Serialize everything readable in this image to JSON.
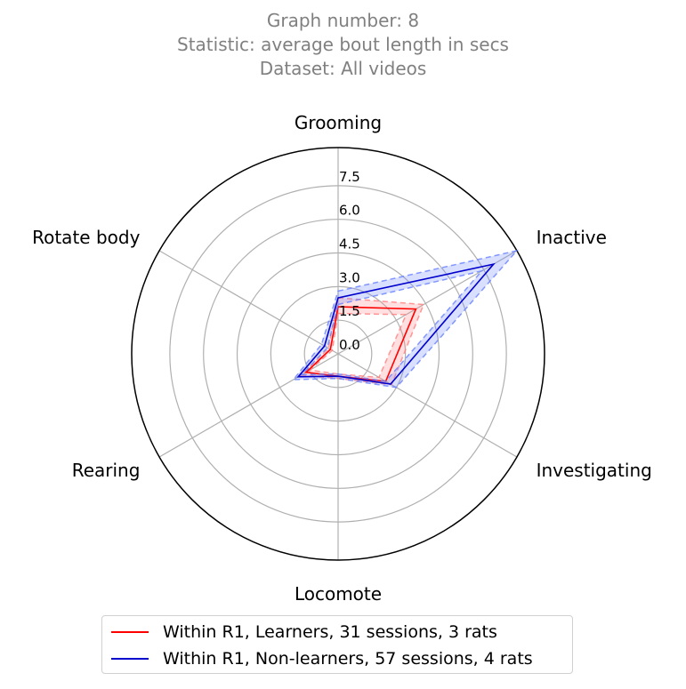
{
  "title": {
    "line1": "Graph number: 8",
    "line2": "Statistic: average bout length in secs",
    "line3": "Dataset: All videos"
  },
  "chart_data": {
    "type": "radar",
    "categories": [
      "Grooming",
      "Inactive",
      "Investigating",
      "Locomote",
      "Rearing",
      "Rotate body"
    ],
    "rlim": [
      0,
      9.2
    ],
    "rticks": [
      0.0,
      1.5,
      3.0,
      4.5,
      6.0,
      7.5
    ],
    "rtick_labels": [
      "0.0",
      "1.5",
      "3.0",
      "4.5",
      "6.0",
      "7.5"
    ],
    "grid": true,
    "legend_position": "bottom-center",
    "series": [
      {
        "name": "Within R1, Learners, 31 sessions, 3 rats",
        "color": "#ff0000",
        "band_color": "#ff8080",
        "values": [
          2.1,
          4.0,
          2.45,
          1.0,
          1.65,
          0.4
        ],
        "lower": [
          1.8,
          3.5,
          2.1,
          0.9,
          1.45,
          0.3
        ],
        "upper": [
          2.5,
          4.4,
          2.75,
          1.1,
          1.9,
          0.5
        ]
      },
      {
        "name": "Within R1, Non-learners, 57 sessions, 4 rats",
        "color": "#0000cc",
        "band_color": "#6680ff",
        "values": [
          2.5,
          8.0,
          2.7,
          1.0,
          2.05,
          0.7
        ],
        "lower": [
          2.2,
          7.4,
          2.45,
          0.9,
          1.85,
          0.55
        ],
        "upper": [
          2.8,
          9.2,
          3.0,
          1.1,
          2.3,
          0.85
        ]
      }
    ]
  }
}
